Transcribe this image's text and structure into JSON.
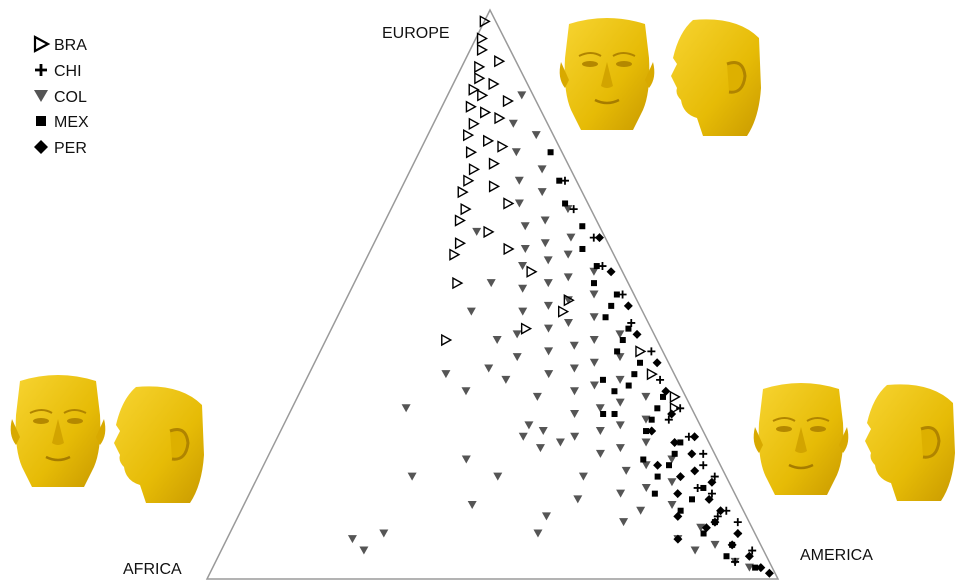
{
  "chart_data": {
    "type": "scatter",
    "subtype": "ternary",
    "title": "",
    "vertices": {
      "top": "EUROPE",
      "left": "AFRICA",
      "right": "AMERICA"
    },
    "legend_placement": "top-left",
    "series": [
      {
        "name": "BRA",
        "marker": "triangle-right-open",
        "color": "#000000",
        "points": [
          [
            0.98,
            0.02,
            0.0
          ],
          [
            0.95,
            0.04,
            0.01
          ],
          [
            0.93,
            0.05,
            0.02
          ],
          [
            0.9,
            0.07,
            0.03
          ],
          [
            0.88,
            0.08,
            0.04
          ],
          [
            0.86,
            0.1,
            0.04
          ],
          [
            0.85,
            0.09,
            0.06
          ],
          [
            0.83,
            0.12,
            0.05
          ],
          [
            0.82,
            0.1,
            0.08
          ],
          [
            0.8,
            0.13,
            0.07
          ],
          [
            0.78,
            0.15,
            0.07
          ],
          [
            0.77,
            0.12,
            0.11
          ],
          [
            0.75,
            0.16,
            0.09
          ],
          [
            0.73,
            0.13,
            0.14
          ],
          [
            0.72,
            0.17,
            0.11
          ],
          [
            0.7,
            0.19,
            0.11
          ],
          [
            0.68,
            0.21,
            0.11
          ],
          [
            0.66,
            0.14,
            0.2
          ],
          [
            0.65,
            0.22,
            0.13
          ],
          [
            0.63,
            0.24,
            0.13
          ],
          [
            0.61,
            0.2,
            0.19
          ],
          [
            0.59,
            0.26,
            0.15
          ],
          [
            0.57,
            0.28,
            0.15
          ],
          [
            0.54,
            0.16,
            0.3
          ],
          [
            0.52,
            0.3,
            0.18
          ],
          [
            0.49,
            0.12,
            0.39
          ],
          [
            0.4,
            0.04,
            0.56
          ],
          [
            0.42,
            0.37,
            0.21
          ],
          [
            0.36,
            0.04,
            0.6
          ],
          [
            0.32,
            0.02,
            0.66
          ],
          [
            0.3,
            0.03,
            0.67
          ],
          [
            0.87,
            0.06,
            0.07
          ],
          [
            0.81,
            0.08,
            0.11
          ],
          [
            0.76,
            0.1,
            0.14
          ],
          [
            0.69,
            0.15,
            0.16
          ],
          [
            0.58,
            0.18,
            0.24
          ],
          [
            0.47,
            0.14,
            0.39
          ],
          [
            0.44,
            0.22,
            0.34
          ],
          [
            0.91,
            0.03,
            0.06
          ],
          [
            0.84,
            0.05,
            0.11
          ]
        ]
      },
      {
        "name": "CHI",
        "marker": "plus",
        "color": "#000000",
        "points": [
          [
            0.6,
            0.02,
            0.38
          ],
          [
            0.55,
            0.03,
            0.42
          ],
          [
            0.5,
            0.02,
            0.48
          ],
          [
            0.45,
            0.03,
            0.52
          ],
          [
            0.4,
            0.02,
            0.58
          ],
          [
            0.35,
            0.03,
            0.62
          ],
          [
            0.3,
            0.02,
            0.68
          ],
          [
            0.25,
            0.03,
            0.72
          ],
          [
            0.22,
            0.02,
            0.76
          ],
          [
            0.2,
            0.03,
            0.77
          ],
          [
            0.18,
            0.02,
            0.8
          ],
          [
            0.15,
            0.04,
            0.81
          ],
          [
            0.12,
            0.03,
            0.85
          ],
          [
            0.1,
            0.02,
            0.88
          ],
          [
            0.08,
            0.03,
            0.89
          ],
          [
            0.05,
            0.02,
            0.93
          ],
          [
            0.03,
            0.06,
            0.91
          ],
          [
            0.7,
            0.02,
            0.28
          ],
          [
            0.65,
            0.03,
            0.32
          ],
          [
            0.28,
            0.05,
            0.67
          ],
          [
            0.16,
            0.06,
            0.78
          ],
          [
            0.11,
            0.05,
            0.84
          ]
        ]
      },
      {
        "name": "COL",
        "marker": "triangle-down",
        "color": "#555555",
        "points": [
          [
            0.85,
            0.02,
            0.13
          ],
          [
            0.8,
            0.06,
            0.14
          ],
          [
            0.78,
            0.03,
            0.19
          ],
          [
            0.75,
            0.08,
            0.17
          ],
          [
            0.72,
            0.05,
            0.23
          ],
          [
            0.7,
            0.1,
            0.2
          ],
          [
            0.68,
            0.07,
            0.25
          ],
          [
            0.66,
            0.12,
            0.22
          ],
          [
            0.65,
            0.04,
            0.31
          ],
          [
            0.63,
            0.09,
            0.28
          ],
          [
            0.62,
            0.13,
            0.25
          ],
          [
            0.6,
            0.06,
            0.34
          ],
          [
            0.59,
            0.11,
            0.3
          ],
          [
            0.58,
            0.15,
            0.27
          ],
          [
            0.57,
            0.08,
            0.35
          ],
          [
            0.56,
            0.12,
            0.32
          ],
          [
            0.55,
            0.17,
            0.28
          ],
          [
            0.54,
            0.05,
            0.41
          ],
          [
            0.53,
            0.1,
            0.37
          ],
          [
            0.52,
            0.14,
            0.34
          ],
          [
            0.51,
            0.19,
            0.3
          ],
          [
            0.5,
            0.07,
            0.43
          ],
          [
            0.49,
            0.12,
            0.39
          ],
          [
            0.48,
            0.16,
            0.36
          ],
          [
            0.47,
            0.21,
            0.32
          ],
          [
            0.46,
            0.09,
            0.45
          ],
          [
            0.45,
            0.14,
            0.41
          ],
          [
            0.44,
            0.18,
            0.38
          ],
          [
            0.43,
            0.06,
            0.51
          ],
          [
            0.42,
            0.11,
            0.47
          ],
          [
            0.41,
            0.15,
            0.44
          ],
          [
            0.4,
            0.2,
            0.4
          ],
          [
            0.39,
            0.08,
            0.53
          ],
          [
            0.38,
            0.13,
            0.49
          ],
          [
            0.37,
            0.17,
            0.46
          ],
          [
            0.36,
            0.22,
            0.42
          ],
          [
            0.35,
            0.1,
            0.55
          ],
          [
            0.34,
            0.15,
            0.51
          ],
          [
            0.33,
            0.19,
            0.48
          ],
          [
            0.32,
            0.07,
            0.61
          ],
          [
            0.31,
            0.12,
            0.57
          ],
          [
            0.3,
            0.16,
            0.54
          ],
          [
            0.29,
            0.21,
            0.5
          ],
          [
            0.28,
            0.09,
            0.63
          ],
          [
            0.27,
            0.14,
            0.59
          ],
          [
            0.26,
            0.18,
            0.56
          ],
          [
            0.25,
            0.23,
            0.52
          ],
          [
            0.24,
            0.11,
            0.65
          ],
          [
            0.23,
            0.16,
            0.61
          ],
          [
            0.22,
            0.2,
            0.58
          ],
          [
            0.21,
            0.08,
            0.71
          ],
          [
            0.2,
            0.13,
            0.67
          ],
          [
            0.19,
            0.17,
            0.64
          ],
          [
            0.18,
            0.25,
            0.57
          ],
          [
            0.17,
            0.1,
            0.73
          ],
          [
            0.16,
            0.15,
            0.69
          ],
          [
            0.15,
            0.2,
            0.65
          ],
          [
            0.14,
            0.28,
            0.58
          ],
          [
            0.13,
            0.12,
            0.75
          ],
          [
            0.12,
            0.18,
            0.7
          ],
          [
            0.11,
            0.35,
            0.54
          ],
          [
            0.1,
            0.22,
            0.68
          ],
          [
            0.09,
            0.09,
            0.82
          ],
          [
            0.08,
            0.38,
            0.54
          ],
          [
            0.07,
            0.14,
            0.79
          ],
          [
            0.06,
            0.08,
            0.86
          ],
          [
            0.05,
            0.12,
            0.83
          ],
          [
            0.03,
            0.06,
            0.91
          ],
          [
            0.02,
            0.04,
            0.94
          ],
          [
            0.36,
            0.4,
            0.24
          ],
          [
            0.3,
            0.5,
            0.2
          ],
          [
            0.24,
            0.26,
            0.5
          ],
          [
            0.21,
            0.44,
            0.35
          ],
          [
            0.18,
            0.4,
            0.42
          ],
          [
            0.18,
            0.55,
            0.27
          ],
          [
            0.13,
            0.47,
            0.4
          ],
          [
            0.08,
            0.65,
            0.27
          ],
          [
            0.07,
            0.71,
            0.22
          ],
          [
            0.05,
            0.7,
            0.25
          ],
          [
            0.42,
            0.28,
            0.3
          ],
          [
            0.37,
            0.32,
            0.31
          ],
          [
            0.33,
            0.38,
            0.29
          ],
          [
            0.27,
            0.3,
            0.43
          ],
          [
            0.47,
            0.3,
            0.23
          ],
          [
            0.52,
            0.24,
            0.24
          ],
          [
            0.61,
            0.22,
            0.17
          ],
          [
            0.43,
            0.24,
            0.33
          ],
          [
            0.39,
            0.26,
            0.35
          ],
          [
            0.35,
            0.3,
            0.35
          ],
          [
            0.32,
            0.26,
            0.42
          ],
          [
            0.26,
            0.28,
            0.46
          ],
          [
            0.25,
            0.32,
            0.43
          ],
          [
            0.23,
            0.3,
            0.47
          ]
        ]
      },
      {
        "name": "MEX",
        "marker": "square",
        "color": "#000000",
        "points": [
          [
            0.75,
            0.02,
            0.23
          ],
          [
            0.7,
            0.03,
            0.27
          ],
          [
            0.66,
            0.04,
            0.3
          ],
          [
            0.62,
            0.03,
            0.35
          ],
          [
            0.58,
            0.05,
            0.37
          ],
          [
            0.55,
            0.04,
            0.41
          ],
          [
            0.52,
            0.06,
            0.42
          ],
          [
            0.5,
            0.03,
            0.47
          ],
          [
            0.48,
            0.05,
            0.47
          ],
          [
            0.46,
            0.07,
            0.47
          ],
          [
            0.44,
            0.04,
            0.52
          ],
          [
            0.42,
            0.06,
            0.52
          ],
          [
            0.4,
            0.08,
            0.52
          ],
          [
            0.38,
            0.05,
            0.57
          ],
          [
            0.36,
            0.07,
            0.57
          ],
          [
            0.34,
            0.09,
            0.57
          ],
          [
            0.32,
            0.04,
            0.64
          ],
          [
            0.3,
            0.06,
            0.64
          ],
          [
            0.28,
            0.08,
            0.64
          ],
          [
            0.26,
            0.1,
            0.64
          ],
          [
            0.24,
            0.05,
            0.71
          ],
          [
            0.22,
            0.07,
            0.71
          ],
          [
            0.2,
            0.09,
            0.71
          ],
          [
            0.18,
            0.12,
            0.7
          ],
          [
            0.16,
            0.05,
            0.79
          ],
          [
            0.14,
            0.08,
            0.78
          ],
          [
            0.12,
            0.11,
            0.77
          ],
          [
            0.1,
            0.06,
            0.84
          ],
          [
            0.08,
            0.09,
            0.83
          ],
          [
            0.06,
            0.05,
            0.89
          ],
          [
            0.04,
            0.07,
            0.89
          ],
          [
            0.02,
            0.03,
            0.95
          ],
          [
            0.33,
            0.12,
            0.55
          ],
          [
            0.29,
            0.14,
            0.57
          ],
          [
            0.21,
            0.13,
            0.66
          ],
          [
            0.15,
            0.14,
            0.71
          ],
          [
            0.35,
            0.13,
            0.52
          ],
          [
            0.29,
            0.16,
            0.55
          ]
        ]
      },
      {
        "name": "PER",
        "marker": "diamond",
        "color": "#000000",
        "points": [
          [
            0.6,
            0.01,
            0.39
          ],
          [
            0.54,
            0.02,
            0.44
          ],
          [
            0.48,
            0.02,
            0.5
          ],
          [
            0.43,
            0.03,
            0.54
          ],
          [
            0.38,
            0.02,
            0.6
          ],
          [
            0.33,
            0.03,
            0.64
          ],
          [
            0.29,
            0.04,
            0.67
          ],
          [
            0.25,
            0.02,
            0.73
          ],
          [
            0.22,
            0.04,
            0.74
          ],
          [
            0.19,
            0.05,
            0.76
          ],
          [
            0.17,
            0.03,
            0.8
          ],
          [
            0.14,
            0.05,
            0.81
          ],
          [
            0.12,
            0.04,
            0.84
          ],
          [
            0.1,
            0.06,
            0.84
          ],
          [
            0.08,
            0.03,
            0.89
          ],
          [
            0.06,
            0.05,
            0.89
          ],
          [
            0.04,
            0.03,
            0.93
          ],
          [
            0.02,
            0.02,
            0.96
          ],
          [
            0.01,
            0.01,
            0.98
          ],
          [
            0.26,
            0.09,
            0.65
          ],
          [
            0.2,
            0.11,
            0.69
          ],
          [
            0.15,
            0.1,
            0.75
          ],
          [
            0.11,
            0.12,
            0.77
          ],
          [
            0.07,
            0.14,
            0.79
          ],
          [
            0.18,
            0.08,
            0.74
          ],
          [
            0.24,
            0.06,
            0.7
          ],
          [
            0.09,
            0.08,
            0.83
          ]
        ]
      }
    ]
  }
}
